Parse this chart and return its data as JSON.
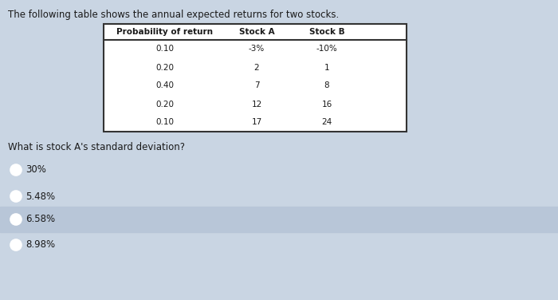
{
  "background_color": "#c9d5e3",
  "title_text": "The following table shows the annual expected returns for two stocks.",
  "title_fontsize": 8.5,
  "table_headers": [
    "Probability of return",
    "Stock A",
    "Stock B"
  ],
  "table_rows": [
    [
      "0.10",
      "-3%",
      "-10%"
    ],
    [
      "0.20",
      "2",
      "1"
    ],
    [
      "0.40",
      "7",
      "8"
    ],
    [
      "0.20",
      "12",
      "16"
    ],
    [
      "0.10",
      "17",
      "24"
    ]
  ],
  "question_text": "What is stock A's standard deviation?",
  "options": [
    {
      "label": "30%",
      "selected": false,
      "highlighted": false
    },
    {
      "label": "5.48%",
      "selected": false,
      "highlighted": false
    },
    {
      "label": "6.58%",
      "selected": true,
      "highlighted": true
    },
    {
      "label": "8.98%",
      "selected": false,
      "highlighted": false
    }
  ],
  "highlight_color": "#b8c6d8",
  "text_color": "#1a1a1a",
  "selected_circle_color": "#3355aa"
}
